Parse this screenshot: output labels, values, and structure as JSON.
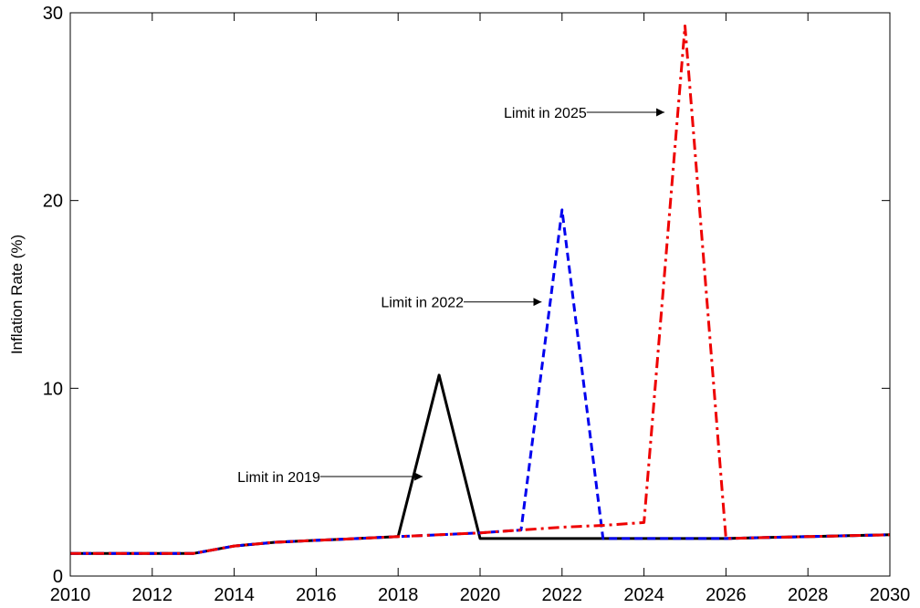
{
  "chart_data": {
    "type": "line",
    "title": "",
    "xlabel": "",
    "ylabel": "Inflation Rate (%)",
    "xlim": [
      2010,
      2030
    ],
    "ylim": [
      0,
      30
    ],
    "xticks": [
      2010,
      2012,
      2014,
      2016,
      2018,
      2020,
      2022,
      2024,
      2026,
      2028,
      2030
    ],
    "yticks": [
      0,
      10,
      20,
      30
    ],
    "grid": false,
    "legend": "none",
    "series": [
      {
        "name": "",
        "color": "#000000",
        "style": "solid",
        "points": [
          [
            2010,
            1.2
          ],
          [
            2011,
            1.2
          ],
          [
            2012,
            1.2
          ],
          [
            2013,
            1.2
          ],
          [
            2014,
            1.6
          ],
          [
            2015,
            1.8
          ],
          [
            2016,
            1.9
          ],
          [
            2017,
            2.0
          ],
          [
            2018,
            2.1
          ],
          [
            2019,
            10.7
          ],
          [
            2020,
            2.0
          ],
          [
            2021,
            2.0
          ],
          [
            2022,
            2.0
          ],
          [
            2023,
            2.0
          ],
          [
            2024,
            2.0
          ],
          [
            2025,
            2.0
          ],
          [
            2026,
            2.0
          ],
          [
            2027,
            2.05
          ],
          [
            2028,
            2.1
          ],
          [
            2029,
            2.15
          ],
          [
            2030,
            2.2
          ]
        ]
      },
      {
        "name": "",
        "color": "#0000ee",
        "style": "dashed",
        "points": [
          [
            2010,
            1.2
          ],
          [
            2011,
            1.2
          ],
          [
            2012,
            1.2
          ],
          [
            2013,
            1.2
          ],
          [
            2014,
            1.6
          ],
          [
            2015,
            1.8
          ],
          [
            2016,
            1.9
          ],
          [
            2017,
            2.0
          ],
          [
            2018,
            2.1
          ],
          [
            2019,
            2.2
          ],
          [
            2020,
            2.3
          ],
          [
            2021,
            2.45
          ],
          [
            2022,
            19.5
          ],
          [
            2023,
            2.0
          ],
          [
            2024,
            2.0
          ],
          [
            2025,
            2.0
          ],
          [
            2026,
            2.0
          ],
          [
            2027,
            2.05
          ],
          [
            2028,
            2.1
          ],
          [
            2029,
            2.15
          ],
          [
            2030,
            2.2
          ]
        ]
      },
      {
        "name": "",
        "color": "#ee0000",
        "style": "dashdot",
        "points": [
          [
            2010,
            1.2
          ],
          [
            2011,
            1.2
          ],
          [
            2012,
            1.2
          ],
          [
            2013,
            1.2
          ],
          [
            2014,
            1.6
          ],
          [
            2015,
            1.8
          ],
          [
            2016,
            1.9
          ],
          [
            2017,
            2.0
          ],
          [
            2018,
            2.1
          ],
          [
            2019,
            2.2
          ],
          [
            2020,
            2.3
          ],
          [
            2021,
            2.45
          ],
          [
            2022,
            2.6
          ],
          [
            2023,
            2.7
          ],
          [
            2024,
            2.85
          ],
          [
            2025,
            29.3
          ],
          [
            2026,
            2.0
          ],
          [
            2027,
            2.05
          ],
          [
            2028,
            2.1
          ],
          [
            2029,
            2.15
          ],
          [
            2030,
            2.2
          ]
        ]
      }
    ],
    "annotations": [
      {
        "text": "Limit in 2019",
        "tip": [
          2018.6,
          5.3
        ],
        "tail": [
          2016.1,
          5.3
        ]
      },
      {
        "text": "Limit in 2022",
        "tip": [
          2021.5,
          14.6
        ],
        "tail": [
          2019.6,
          14.6
        ]
      },
      {
        "text": "Limit in 2025",
        "tip": [
          2024.5,
          24.7
        ],
        "tail": [
          2022.6,
          24.7
        ]
      }
    ]
  }
}
